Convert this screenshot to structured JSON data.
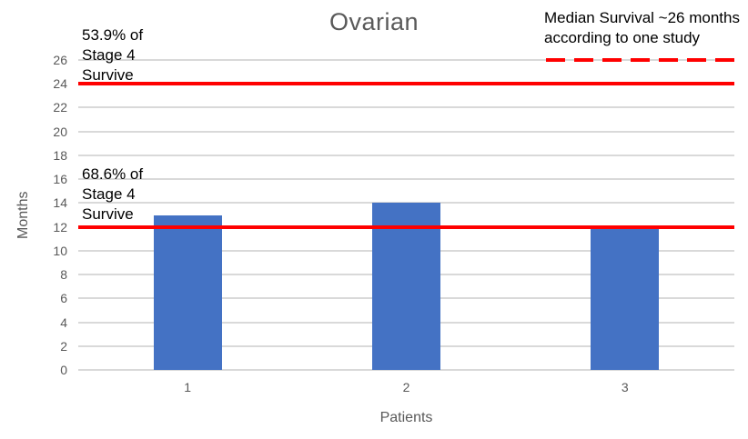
{
  "chart_data": {
    "type": "bar",
    "title": "Ovarian",
    "categories": [
      "1",
      "2",
      "3"
    ],
    "values": [
      13,
      14,
      12
    ],
    "xlabel": "Patients",
    "ylabel": "Months",
    "ylim": [
      0,
      26
    ],
    "ytick_step": 2,
    "grid": true,
    "legend": false,
    "bar_color": "#4472C4",
    "gridline_color": "#D9D9D9",
    "axis_text_color": "#595959",
    "reference_lines": [
      {
        "value": 24,
        "style": "solid",
        "color": "#FF0000",
        "label": "53.9% of\nStage 4\nSurvive",
        "span": "full"
      },
      {
        "value": 12,
        "style": "solid",
        "color": "#FF0000",
        "label": "68.6% of\nStage 4\nSurvive",
        "span": "full"
      },
      {
        "value": 26,
        "style": "dashed",
        "color": "#FF0000",
        "label": "Median Survival ~26 months\naccording to one study",
        "span": "right-partial"
      }
    ]
  }
}
